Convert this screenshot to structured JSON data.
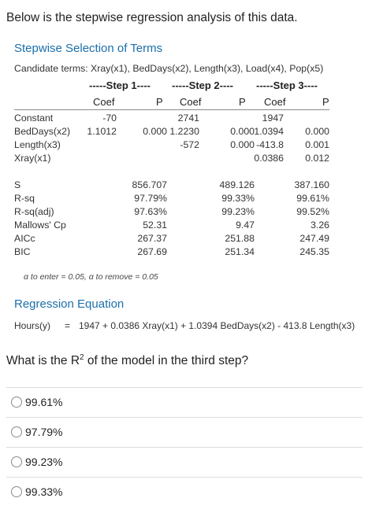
{
  "intro": "Below is the stepwise regression analysis of this data.",
  "stepwise": {
    "title": "Stepwise Selection of Terms",
    "candidates": "Candidate terms: Xray(x1), BedDays(x2), Length(x3), Load(x4), Pop(x5)",
    "steps": [
      "-----Step 1----",
      "-----Step 2----",
      "-----Step 3----"
    ],
    "col_coef": "Coef",
    "col_p": "P",
    "rows": [
      {
        "label": "Constant",
        "c1": "-70",
        "p1": "",
        "c2": "2741",
        "p2": "",
        "c3": "1947",
        "p3": ""
      },
      {
        "label": "BedDays(x2)",
        "c1": "1.1012",
        "p1": "0.000",
        "c2": "1.2230",
        "p2": "0.000",
        "c3": "1.0394",
        "p3": "0.000"
      },
      {
        "label": "Length(x3)",
        "c1": "",
        "p1": "",
        "c2": "-572",
        "p2": "0.000",
        "c3": "-413.8",
        "p3": "0.001"
      },
      {
        "label": "Xray(x1)",
        "c1": "",
        "p1": "",
        "c2": "",
        "p2": "",
        "c3": "0.0386",
        "p3": "0.012"
      }
    ],
    "stats": [
      {
        "label": "S",
        "v1": "856.707",
        "v2": "489.126",
        "v3": "387.160"
      },
      {
        "label": "R-sq",
        "v1": "97.79%",
        "v2": "99.33%",
        "v3": "99.61%"
      },
      {
        "label": "R-sq(adj)",
        "v1": "97.63%",
        "v2": "99.23%",
        "v3": "99.52%"
      },
      {
        "label": "Mallows' Cp",
        "v1": "52.31",
        "v2": "9.47",
        "v3": "3.26"
      },
      {
        "label": "AICc",
        "v1": "267.37",
        "v2": "251.88",
        "v3": "247.49"
      },
      {
        "label": "BIC",
        "v1": "267.69",
        "v2": "251.34",
        "v3": "245.35"
      }
    ],
    "footnote": "α to enter = 0.05, α to remove = 0.05"
  },
  "regression": {
    "title": "Regression Equation",
    "lhs": "Hours(y)",
    "eq_sign": "=",
    "rhs": "1947 + 0.0386 Xray(x1) + 1.0394 BedDays(x2) - 413.8 Length(x3)"
  },
  "question": {
    "before": "What is the R",
    "sup": "2",
    "after": " of the model in the third step?"
  },
  "options": [
    {
      "label": "99.61%"
    },
    {
      "label": "97.79%"
    },
    {
      "label": "99.23%"
    },
    {
      "label": "99.33%"
    }
  ]
}
